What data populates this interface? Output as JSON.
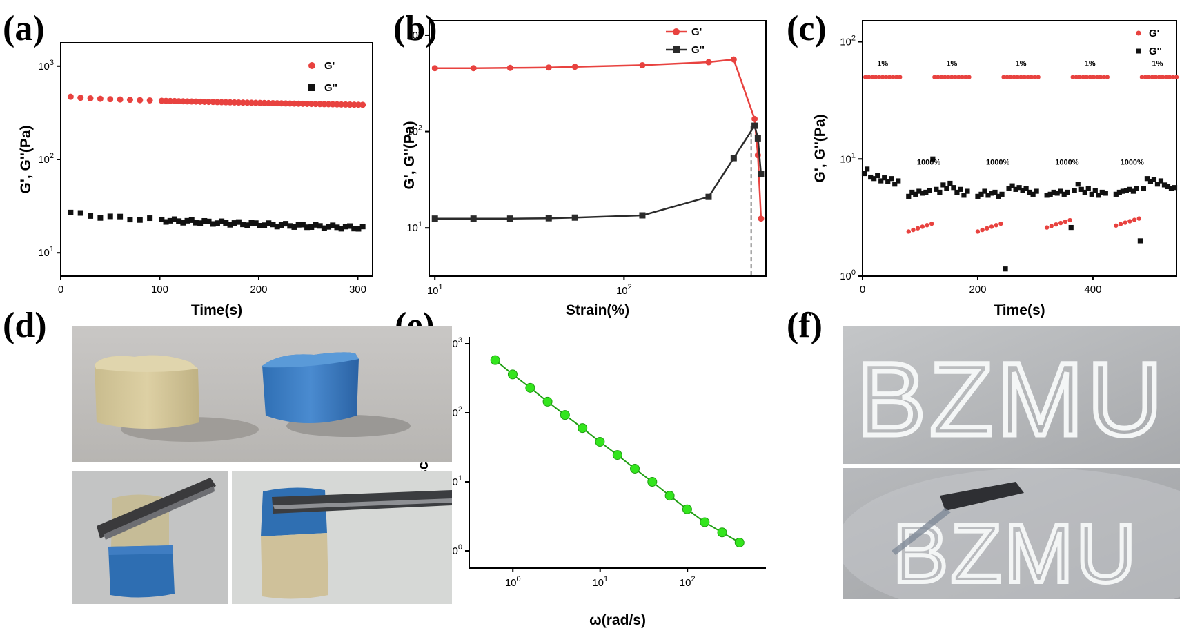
{
  "panels": {
    "a": "(a)",
    "b": "(b)",
    "c": "(c)",
    "d": "(d)",
    "e": "(e)",
    "f": "(f)"
  },
  "colors": {
    "g_prime": "#e8423f",
    "g_double_prime": "#111111",
    "viscosity": "#33e51d",
    "viscosity_line": "#1f9e12"
  },
  "chart_data": [
    {
      "panel": "a",
      "type": "scatter",
      "xlabel": "Time(s)",
      "ylabel": "G', G''(Pa)",
      "xlim": [
        0,
        315
      ],
      "ylim_log10": [
        0.75,
        3.25
      ],
      "y_scale": "log",
      "xticks": [
        0,
        100,
        200,
        300
      ],
      "yticks": [
        {
          "value": 10,
          "label_base": "10",
          "label_exp": "1"
        },
        {
          "value": 100,
          "label_base": "10",
          "label_exp": "2"
        },
        {
          "value": 1000,
          "label_base": "10",
          "label_exp": "3"
        }
      ],
      "legend_position": "top-right",
      "series": [
        {
          "name": "G'",
          "marker": "circle",
          "x_start": 10,
          "x_step_initial": 10,
          "initial_points": 9,
          "x_dense_start": 102,
          "x_dense_end": 305,
          "dense_points": 48,
          "y_start": 470,
          "y_end": 385
        },
        {
          "name": "G''",
          "marker": "square",
          "x_start": 10,
          "x_step_initial": 10,
          "initial_points": 9,
          "x_dense_start": 102,
          "x_dense_end": 305,
          "dense_points": 48,
          "y_start": 27,
          "y_end": 18.5
        }
      ]
    },
    {
      "panel": "b",
      "type": "line",
      "xlabel": "Strain(%)",
      "ylabel": "G', G''(Pa)",
      "x_scale": "log",
      "y_scale": "log",
      "xlim_log10": [
        0.97,
        2.75
      ],
      "ylim_log10": [
        0.5,
        3.15
      ],
      "xticks": [
        {
          "value": 10,
          "label_base": "10",
          "label_exp": "1"
        },
        {
          "value": 100,
          "label_base": "10",
          "label_exp": "2"
        }
      ],
      "yticks": [
        {
          "value": 10,
          "label_base": "10",
          "label_exp": "1"
        },
        {
          "value": 100,
          "label_base": "10",
          "label_exp": "2"
        },
        {
          "value": 1000,
          "label_base": "10",
          "label_exp": "3"
        }
      ],
      "crossover_strain": 470,
      "legend_position": "top-right",
      "series": [
        {
          "name": "G'",
          "marker": "circle",
          "x": [
            10,
            16,
            25,
            40,
            55,
            125,
            280,
            380,
            490,
            510,
            530
          ],
          "y": [
            455,
            455,
            458,
            462,
            470,
            488,
            525,
            560,
            135,
            57,
            12.5
          ]
        },
        {
          "name": "G''",
          "marker": "square",
          "x": [
            10,
            16,
            25,
            40,
            55,
            125,
            280,
            380,
            490,
            510,
            530
          ],
          "y": [
            12.5,
            12.5,
            12.5,
            12.6,
            12.8,
            13.5,
            21,
            53,
            115,
            85,
            36
          ]
        }
      ]
    },
    {
      "panel": "c",
      "type": "scatter",
      "xlabel": "Time(s)",
      "ylabel": "G', G''(Pa)",
      "xlim": [
        0,
        545
      ],
      "ylim_log10": [
        0,
        2.18
      ],
      "y_scale": "log",
      "xticks": [
        0,
        200,
        400
      ],
      "yticks": [
        {
          "value": 1,
          "label_base": "10",
          "label_exp": "0"
        },
        {
          "value": 10,
          "label_base": "10",
          "label_exp": "1"
        },
        {
          "value": 100,
          "label_base": "10",
          "label_exp": "2"
        }
      ],
      "annotations": [
        {
          "text": "1%",
          "x": 35
        },
        {
          "text": "1%",
          "x": 155
        },
        {
          "text": "1%",
          "x": 275
        },
        {
          "text": "1%",
          "x": 395
        },
        {
          "text": "1%",
          "x": 512
        },
        {
          "text": "1000%",
          "x": 115
        },
        {
          "text": "1000%",
          "x": 235
        },
        {
          "text": "1000%",
          "x": 355
        },
        {
          "text": "1000%",
          "x": 468
        }
      ],
      "legend_position": "top-right",
      "series": [
        {
          "name": "G'",
          "marker": "diamond",
          "segments": [
            {
              "x": [
                5,
                65
              ],
              "y": 50,
              "n": 11
            },
            {
              "x": [
                80,
                120
              ],
              "y": [
                2.4,
                2.8
              ],
              "n": 6
            },
            {
              "x": [
                125,
                185
              ],
              "y": 50,
              "n": 11
            },
            {
              "x": [
                200,
                240
              ],
              "y": [
                2.4,
                2.8
              ],
              "n": 6
            },
            {
              "x": [
                245,
                305
              ],
              "y": 50,
              "n": 11
            },
            {
              "x": [
                320,
                360
              ],
              "y": [
                2.6,
                3.0
              ],
              "n": 6
            },
            {
              "x": [
                365,
                425
              ],
              "y": 50,
              "n": 11
            },
            {
              "x": [
                440,
                480
              ],
              "y": [
                2.7,
                3.1
              ],
              "n": 6
            },
            {
              "x": [
                485,
                545
              ],
              "y": 50,
              "n": 11
            }
          ]
        },
        {
          "name": "G''",
          "marker": "square",
          "x": [
            3,
            8,
            14,
            20,
            26,
            32,
            38,
            44,
            50,
            56,
            62,
            80,
            86,
            92,
            98,
            104,
            110,
            116,
            122,
            128,
            134,
            140,
            146,
            152,
            158,
            164,
            170,
            176,
            182,
            200,
            206,
            212,
            218,
            224,
            230,
            236,
            242,
            248,
            254,
            260,
            266,
            272,
            278,
            284,
            290,
            296,
            302,
            320,
            326,
            332,
            338,
            344,
            350,
            356,
            362,
            368,
            374,
            380,
            386,
            392,
            398,
            404,
            410,
            416,
            422,
            440,
            446,
            452,
            458,
            464,
            470,
            476,
            482,
            488,
            494,
            500,
            506,
            512,
            518,
            524,
            530,
            536,
            542
          ],
          "y": [
            7.5,
            8.2,
            7.0,
            6.8,
            7.2,
            6.5,
            6.9,
            6.4,
            6.8,
            6.1,
            6.5,
            4.8,
            5.2,
            5.0,
            5.3,
            5.1,
            5.2,
            5.4,
            10.0,
            5.5,
            5.2,
            6.0,
            5.6,
            6.2,
            5.7,
            5.2,
            5.5,
            4.9,
            5.3,
            4.8,
            5.0,
            5.3,
            4.9,
            5.1,
            5.2,
            4.8,
            5.0,
            1.15,
            5.6,
            5.9,
            5.5,
            5.7,
            5.4,
            5.6,
            5.2,
            5.0,
            5.3,
            4.9,
            5.0,
            5.2,
            5.1,
            5.3,
            5.0,
            5.2,
            2.6,
            5.4,
            6.1,
            5.5,
            5.2,
            5.6,
            5.0,
            5.4,
            4.9,
            5.2,
            5.1,
            5.0,
            5.2,
            5.3,
            5.4,
            5.5,
            5.3,
            5.6,
            2.0,
            5.6,
            6.8,
            6.4,
            6.7,
            6.1,
            6.5,
            6.0,
            5.8,
            5.6,
            5.7
          ]
        }
      ]
    },
    {
      "panel": "e",
      "type": "line",
      "xlabel": "ω(rad/s)",
      "ylabel": "Complex Viscosity ( Pa.s )",
      "x_scale": "log",
      "y_scale": "log",
      "xlim_log10": [
        -0.5,
        2.9
      ],
      "ylim_log10": [
        -0.25,
        3.1
      ],
      "xticks": [
        {
          "value": 1,
          "label_base": "10",
          "label_exp": "0"
        },
        {
          "value": 10,
          "label_base": "10",
          "label_exp": "1"
        },
        {
          "value": 100,
          "label_base": "10",
          "label_exp": "2"
        }
      ],
      "yticks": [
        {
          "value": 1,
          "label_base": "10",
          "label_exp": "0"
        },
        {
          "value": 10,
          "label_base": "10",
          "label_exp": "1"
        },
        {
          "value": 100,
          "label_base": "10",
          "label_exp": "2"
        },
        {
          "value": 1000,
          "label_base": "10",
          "label_exp": "3"
        }
      ],
      "series": [
        {
          "marker": "circle",
          "x": [
            0.628,
            0.995,
            1.58,
            2.5,
            3.96,
            6.28,
            9.95,
            15.8,
            25,
            39.6,
            62.8,
            99.5,
            158,
            250,
            396
          ],
          "y": [
            580,
            360,
            230,
            145,
            93,
            60,
            38,
            24.5,
            15.5,
            10,
            6.3,
            4.0,
            2.6,
            1.85,
            1.32
          ]
        }
      ]
    }
  ],
  "photos": {
    "f_top_text": "BZMU",
    "f_bottom_text": "BZMU"
  }
}
